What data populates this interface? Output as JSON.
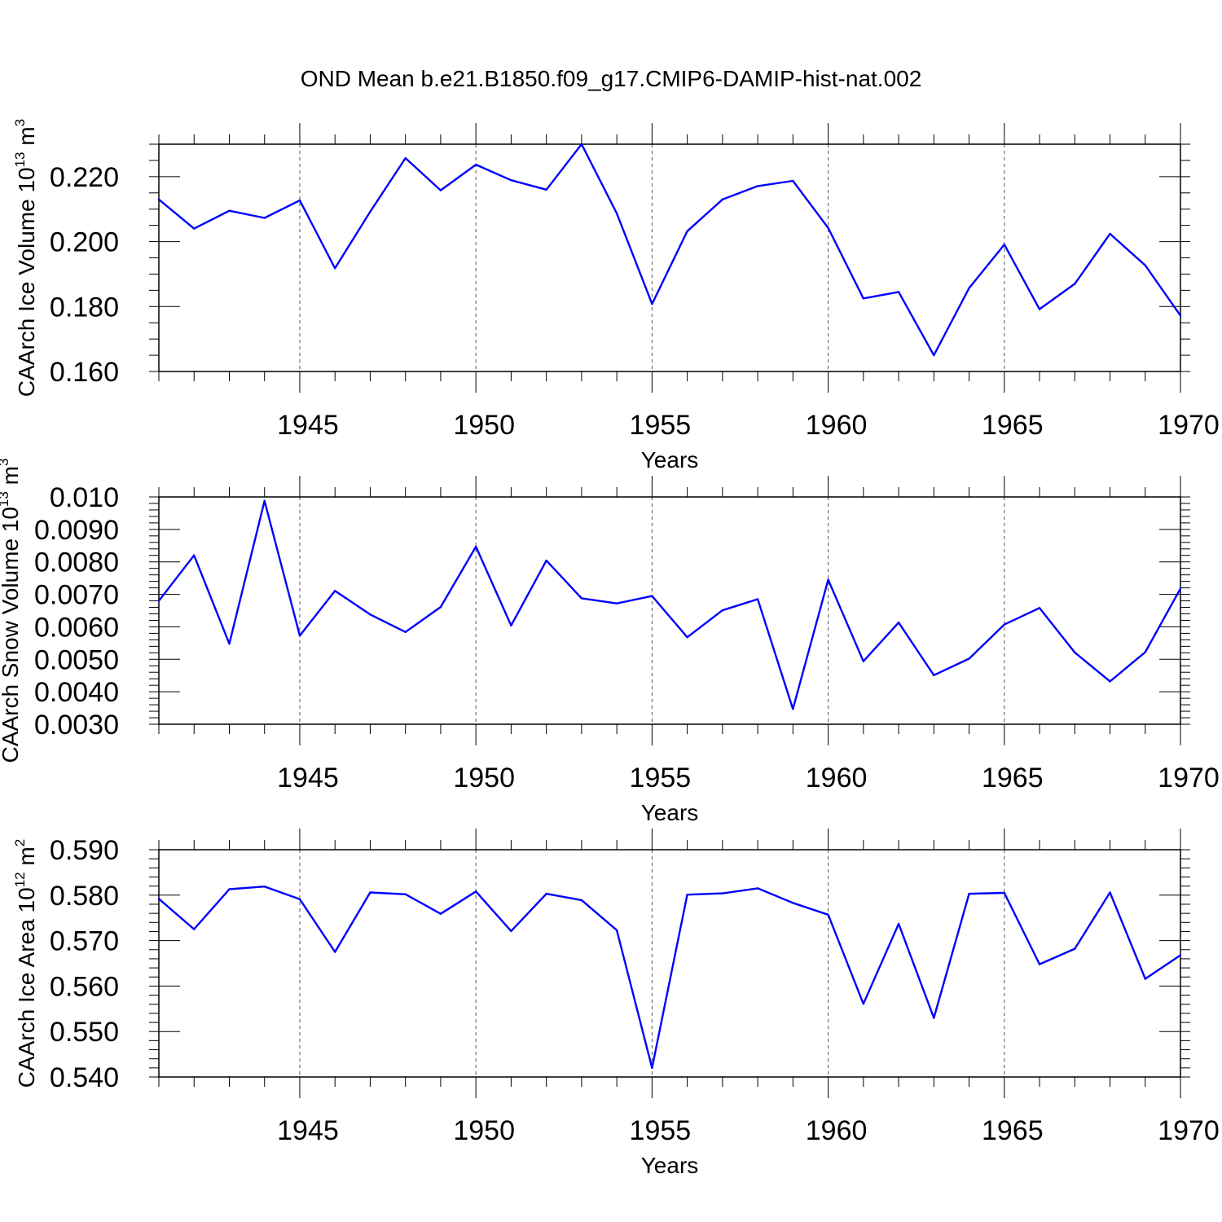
{
  "figure_title": "OND Mean b.e21.B1850.f09_g17.CMIP6-DAMIP-hist-nat.002",
  "line_color": "#0000ff",
  "chart_data": [
    {
      "type": "line",
      "id": "ice-volume",
      "ylabel": {
        "main": "CAArch Ice Volume 10",
        "exp": "13",
        "unit": " m",
        "unit_exp": "3"
      },
      "xlabel": "Years",
      "xlim": [
        1941,
        1970
      ],
      "ylim": [
        0.16,
        0.23
      ],
      "yticks": [
        0.16,
        0.18,
        0.2,
        0.22
      ],
      "ytick_labels": [
        "0.160",
        "0.180",
        "0.200",
        "0.220"
      ],
      "yminor_step": 0.005,
      "xticks": [
        1945,
        1950,
        1955,
        1960,
        1965,
        1970
      ],
      "xtick_labels": [
        "1945",
        "1950",
        "1955",
        "1960",
        "1965",
        "1970"
      ],
      "x": [
        1941,
        1942,
        1943,
        1944,
        1945,
        1946,
        1947,
        1948,
        1949,
        1950,
        1951,
        1952,
        1953,
        1954,
        1955,
        1956,
        1957,
        1958,
        1959,
        1960,
        1961,
        1962,
        1963,
        1964,
        1965,
        1966,
        1967,
        1968,
        1969,
        1970
      ],
      "y": [
        0.213,
        0.204,
        0.2095,
        0.2073,
        0.2127,
        0.1918,
        0.2092,
        0.2257,
        0.2158,
        0.2237,
        0.2189,
        0.216,
        0.23,
        0.2087,
        0.1808,
        0.2032,
        0.213,
        0.2171,
        0.2187,
        0.2042,
        0.1825,
        0.1845,
        0.165,
        0.1857,
        0.1991,
        0.1792,
        0.187,
        0.2024,
        0.1927,
        0.1772
      ]
    },
    {
      "type": "line",
      "id": "snow-volume",
      "ylabel": {
        "main": "CAArch Snow Volume 10",
        "exp": "13",
        "unit": " m",
        "unit_exp": "3"
      },
      "xlabel": "Years",
      "xlim": [
        1941,
        1970
      ],
      "ylim": [
        0.003,
        0.01
      ],
      "yticks": [
        0.003,
        0.004,
        0.005,
        0.006,
        0.007,
        0.008,
        0.009,
        0.01
      ],
      "ytick_labels": [
        "0.0030",
        "0.0040",
        "0.0050",
        "0.0060",
        "0.0070",
        "0.0080",
        "0.0090",
        "0.010"
      ],
      "yminor_step": 0.0002,
      "xticks": [
        1945,
        1950,
        1955,
        1960,
        1965,
        1970
      ],
      "xtick_labels": [
        "1945",
        "1950",
        "1955",
        "1960",
        "1965",
        "1970"
      ],
      "x": [
        1941,
        1942,
        1943,
        1944,
        1945,
        1946,
        1947,
        1948,
        1949,
        1950,
        1951,
        1952,
        1953,
        1954,
        1955,
        1956,
        1957,
        1958,
        1959,
        1960,
        1961,
        1962,
        1963,
        1964,
        1965,
        1966,
        1967,
        1968,
        1969,
        1970
      ],
      "y": [
        0.0068,
        0.0082,
        0.00548,
        0.00988,
        0.00573,
        0.00711,
        0.00638,
        0.00584,
        0.00661,
        0.00847,
        0.00604,
        0.00804,
        0.00688,
        0.00672,
        0.00695,
        0.00568,
        0.00651,
        0.00685,
        0.00347,
        0.00745,
        0.00494,
        0.00613,
        0.00451,
        0.00502,
        0.00607,
        0.00658,
        0.00521,
        0.00432,
        0.00522,
        0.00718
      ]
    },
    {
      "type": "line",
      "id": "ice-area",
      "ylabel": {
        "main": "CAArch Ice Area 10",
        "exp": "12",
        "unit": " m",
        "unit_exp": "2"
      },
      "xlabel": "Years",
      "xlim": [
        1941,
        1970
      ],
      "ylim": [
        0.54,
        0.59
      ],
      "yticks": [
        0.54,
        0.55,
        0.56,
        0.57,
        0.58,
        0.59
      ],
      "ytick_labels": [
        "0.540",
        "0.550",
        "0.560",
        "0.570",
        "0.580",
        "0.590"
      ],
      "yminor_step": 0.002,
      "xticks": [
        1945,
        1950,
        1955,
        1960,
        1965,
        1970
      ],
      "xtick_labels": [
        "1945",
        "1950",
        "1955",
        "1960",
        "1965",
        "1970"
      ],
      "x": [
        1941,
        1942,
        1943,
        1944,
        1945,
        1946,
        1947,
        1948,
        1949,
        1950,
        1951,
        1952,
        1953,
        1954,
        1955,
        1956,
        1957,
        1958,
        1959,
        1960,
        1961,
        1962,
        1963,
        1964,
        1965,
        1966,
        1967,
        1968,
        1969,
        1970
      ],
      "y": [
        0.5792,
        0.5725,
        0.5813,
        0.5819,
        0.5791,
        0.5675,
        0.5806,
        0.5802,
        0.5759,
        0.5808,
        0.5721,
        0.5803,
        0.5789,
        0.5723,
        0.542,
        0.5801,
        0.5804,
        0.5815,
        0.5783,
        0.5757,
        0.5561,
        0.5737,
        0.553,
        0.5803,
        0.5805,
        0.5648,
        0.5682,
        0.5806,
        0.5616,
        0.5668
      ]
    }
  ]
}
